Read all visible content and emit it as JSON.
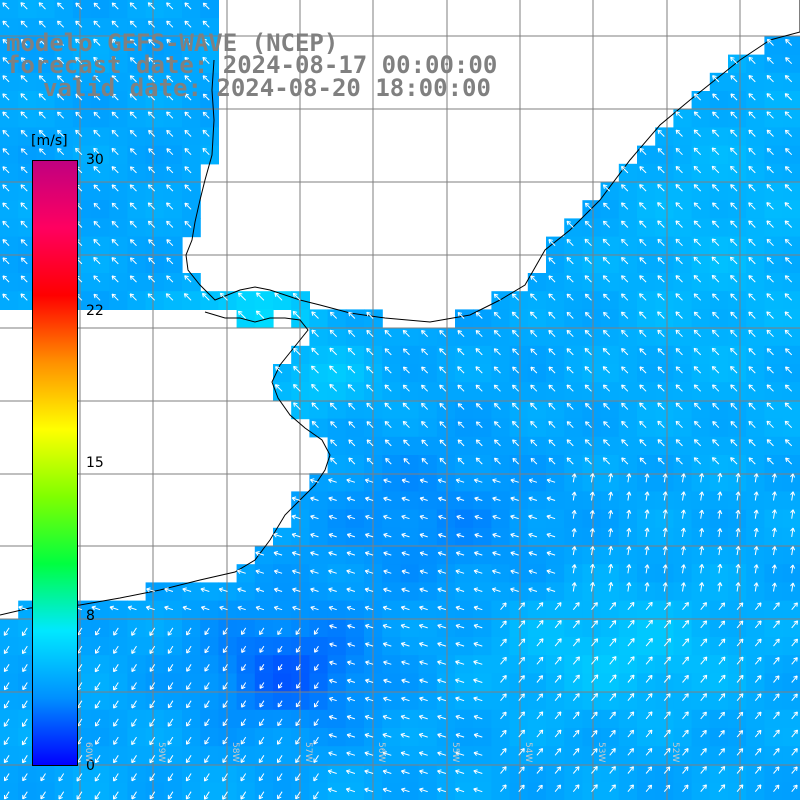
{
  "title": {
    "model": "modelo GEFS-WAVE (NCEP)",
    "forecast": "forecast date: 2024-08-17 00:00:00",
    "valid": "valid date: 2024-08-20 18:00:00"
  },
  "colorbar": {
    "unit": "[m/s]",
    "range": [
      0,
      30
    ],
    "ticks": [
      "30",
      "22",
      "15",
      "8",
      "0"
    ],
    "gradient_colors": [
      "#0000ff",
      "#0090ff",
      "#00e8ff",
      "#00ff40",
      "#80ff00",
      "#ffff00",
      "#ff9000",
      "#ff0000",
      "#ff0060",
      "#c00080"
    ]
  },
  "map": {
    "longitude_labels": [
      "60W",
      "59W",
      "58W",
      "57W",
      "56W",
      "55W",
      "54W",
      "53W",
      "52W"
    ],
    "colors": {
      "land": "#ffffff",
      "grid": "#7f7f7f",
      "coast": "#000000",
      "arrow": "#ffffff"
    },
    "field": "10 m wind speed (m/s) with direction arrows"
  }
}
